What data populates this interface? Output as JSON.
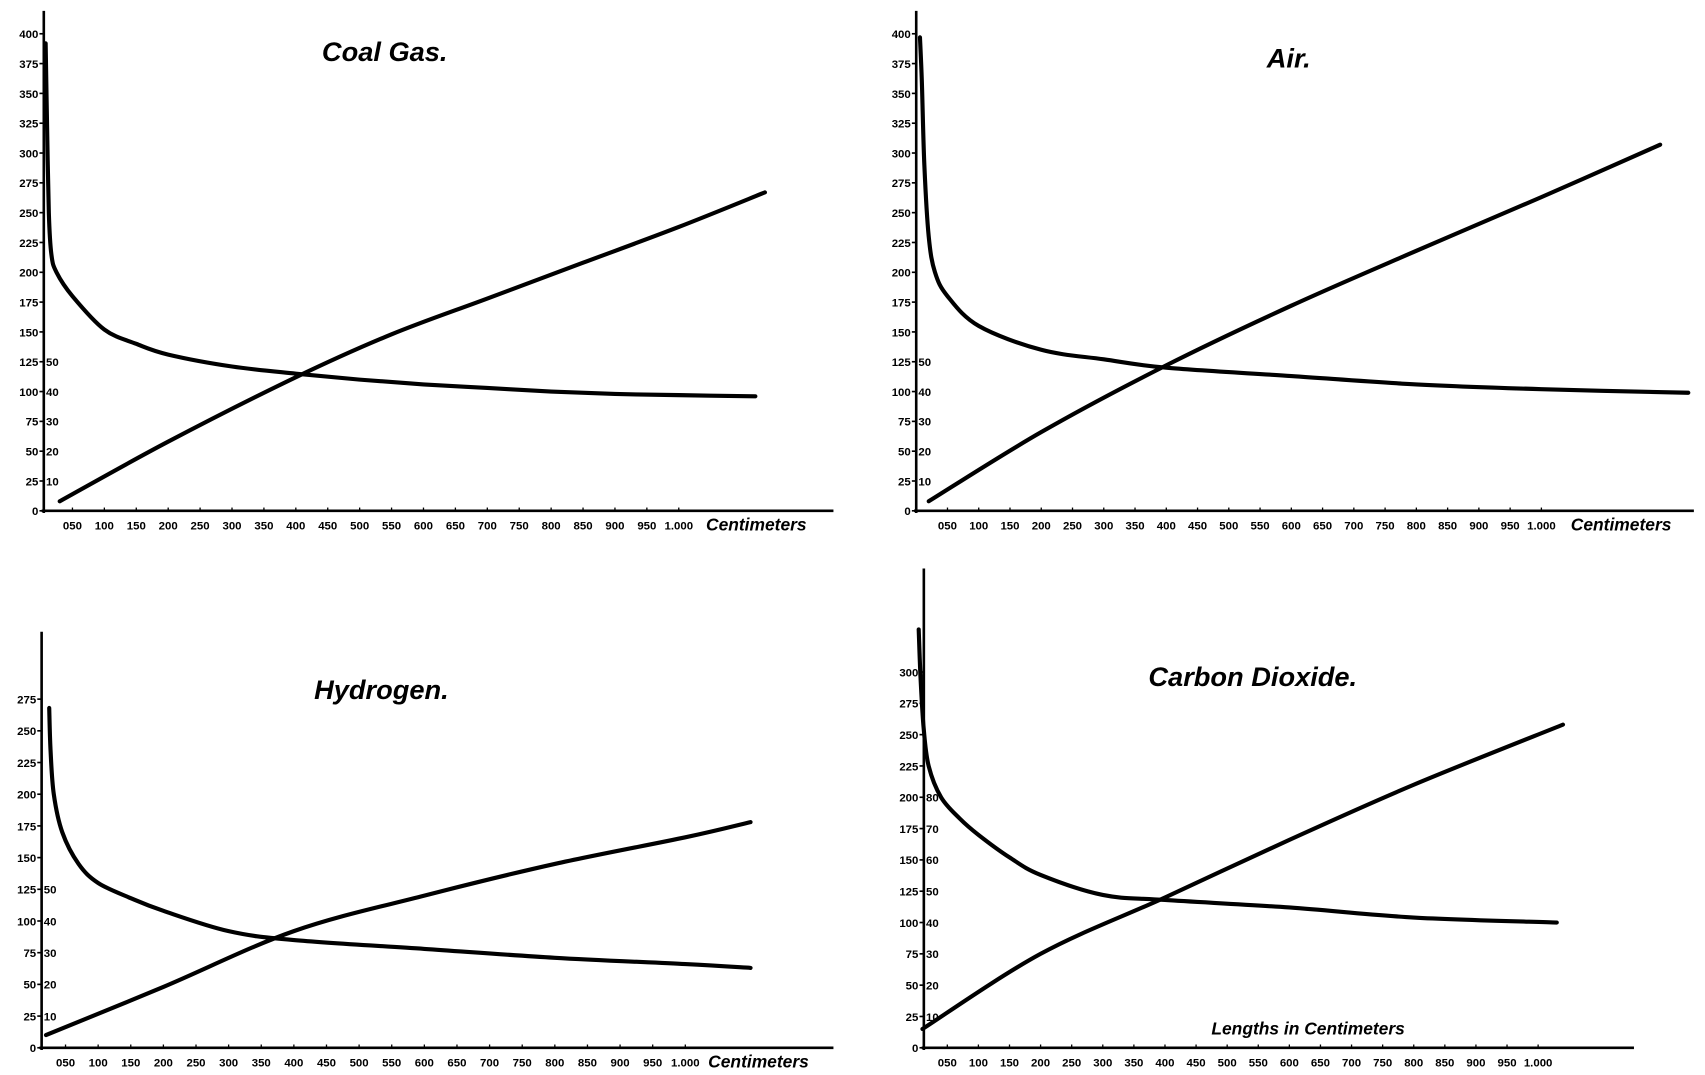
{
  "colors": {
    "ink": "#000000",
    "background": "#ffffff"
  },
  "chart_data": [
    {
      "type": "line",
      "title": "Coal Gas.",
      "xlabel": "Centimeters",
      "grid": false,
      "y_ticks": [
        "0",
        "25",
        "50",
        "75",
        "100",
        "125",
        "150",
        "175",
        "200",
        "225",
        "250",
        "275",
        "300",
        "325",
        "350",
        "375",
        "400"
      ],
      "y_tick_values": [
        0,
        25,
        50,
        75,
        100,
        125,
        150,
        175,
        200,
        225,
        250,
        275,
        300,
        325,
        350,
        375,
        400
      ],
      "y2_ticks": [
        "10",
        "20",
        "30",
        "40",
        "50"
      ],
      "x_ticks": [
        "050",
        "100",
        "150",
        "200",
        "250",
        "300",
        "350",
        "400",
        "450",
        "500",
        "550",
        "600",
        "650",
        "700",
        "750",
        "800",
        "850",
        "900",
        "950",
        "1.000"
      ],
      "x_tick_values": [
        50,
        100,
        150,
        200,
        250,
        300,
        350,
        400,
        450,
        500,
        550,
        600,
        650,
        700,
        750,
        800,
        850,
        900,
        950,
        1000
      ],
      "ylim": [
        0,
        400
      ],
      "series": [
        {
          "x": [
            8,
            10,
            13,
            17,
            25,
            50,
            100,
            150,
            200,
            300,
            400,
            500,
            600,
            700,
            800,
            900,
            1000,
            1120
          ],
          "y": [
            392,
            330,
            250,
            215,
            200,
            180,
            152,
            140,
            131,
            121,
            115,
            110,
            106,
            103,
            100,
            98,
            97,
            96
          ]
        },
        {
          "x": [
            30,
            200,
            400,
            550,
            700,
            850,
            1000,
            1135
          ],
          "y": [
            8,
            58,
            112,
            148,
            178,
            208,
            238,
            267
          ]
        }
      ]
    },
    {
      "type": "line",
      "title": "Air.",
      "xlabel": "Centimeters",
      "grid": false,
      "y_ticks": [
        "0",
        "25",
        "50",
        "75",
        "100",
        "125",
        "150",
        "175",
        "200",
        "225",
        "250",
        "275",
        "300",
        "325",
        "350",
        "375",
        "400"
      ],
      "y_tick_values": [
        0,
        25,
        50,
        75,
        100,
        125,
        150,
        175,
        200,
        225,
        250,
        275,
        300,
        325,
        350,
        375,
        400
      ],
      "y2_ticks": [
        "10",
        "20",
        "30",
        "40",
        "50"
      ],
      "x_ticks": [
        "050",
        "100",
        "150",
        "200",
        "250",
        "300",
        "350",
        "400",
        "450",
        "500",
        "550",
        "600",
        "650",
        "700",
        "750",
        "800",
        "850",
        "900",
        "950",
        "1.000"
      ],
      "x_tick_values": [
        50,
        100,
        150,
        200,
        250,
        300,
        350,
        400,
        450,
        500,
        550,
        600,
        650,
        700,
        750,
        800,
        850,
        900,
        950,
        1000
      ],
      "ylim": [
        0,
        400
      ],
      "series": [
        {
          "x": [
            6,
            9,
            13,
            20,
            30,
            50,
            100,
            200,
            300,
            400,
            600,
            800,
            1000,
            1235
          ],
          "y": [
            397,
            360,
            290,
            230,
            200,
            180,
            155,
            135,
            127,
            120,
            113,
            106,
            102,
            99
          ]
        },
        {
          "x": [
            20,
            200,
            400,
            600,
            800,
            1000,
            1190
          ],
          "y": [
            8,
            66,
            122,
            172,
            218,
            263,
            307
          ]
        }
      ]
    },
    {
      "type": "line",
      "title": "Hydrogen.",
      "xlabel": "Centimeters",
      "grid": false,
      "y_ticks": [
        "0",
        "25",
        "50",
        "75",
        "100",
        "125",
        "150",
        "175",
        "200",
        "225",
        "250",
        "275"
      ],
      "y_tick_values": [
        0,
        25,
        50,
        75,
        100,
        125,
        150,
        175,
        200,
        225,
        250,
        275
      ],
      "y2_ticks": [
        "10",
        "20",
        "30",
        "40",
        "50"
      ],
      "x_ticks": [
        "050",
        "100",
        "150",
        "200",
        "250",
        "300",
        "350",
        "400",
        "450",
        "500",
        "550",
        "600",
        "650",
        "700",
        "750",
        "800",
        "850",
        "900",
        "950",
        "1.000"
      ],
      "x_tick_values": [
        50,
        100,
        150,
        200,
        250,
        300,
        350,
        400,
        450,
        500,
        550,
        600,
        650,
        700,
        750,
        800,
        850,
        900,
        950,
        1000
      ],
      "ylim": [
        0,
        275
      ],
      "series": [
        {
          "x": [
            25,
            27,
            32,
            45,
            70,
            100,
            150,
            200,
            300,
            400,
            600,
            800,
            1000,
            1100
          ],
          "y": [
            268,
            235,
            200,
            170,
            145,
            130,
            118,
            108,
            92,
            85,
            78,
            71,
            66,
            63
          ]
        },
        {
          "x": [
            20,
            200,
            400,
            600,
            800,
            1000,
            1100
          ],
          "y": [
            10,
            48,
            92,
            120,
            145,
            166,
            178
          ]
        }
      ]
    },
    {
      "type": "line",
      "title": "Carbon Dioxide.",
      "xlabel": "Lengths in Centimeters",
      "grid": false,
      "y_ticks": [
        "0",
        "25",
        "50",
        "75",
        "100",
        "125",
        "150",
        "175",
        "200",
        "225",
        "250",
        "275",
        "300"
      ],
      "y_tick_values": [
        0,
        25,
        50,
        75,
        100,
        125,
        150,
        175,
        200,
        225,
        250,
        275,
        300
      ],
      "y2_ticks": [
        "10",
        "20",
        "30",
        "40",
        "50",
        "60",
        "70",
        "80"
      ],
      "x_ticks": [
        "050",
        "100",
        "150",
        "200",
        "250",
        "300",
        "350",
        "400",
        "450",
        "500",
        "550",
        "600",
        "650",
        "700",
        "750",
        "800",
        "850",
        "900",
        "950",
        "1.000"
      ],
      "x_tick_values": [
        50,
        100,
        150,
        200,
        250,
        300,
        350,
        400,
        450,
        500,
        550,
        600,
        650,
        700,
        750,
        800,
        850,
        900,
        950,
        1000
      ],
      "ylim": [
        0,
        300
      ],
      "series": [
        {
          "x": [
            4,
            7,
            12,
            20,
            40,
            70,
            100,
            150,
            200,
            300,
            400,
            600,
            800,
            1030
          ],
          "y": [
            334,
            295,
            255,
            225,
            200,
            183,
            170,
            152,
            138,
            122,
            118,
            112,
            104,
            100
          ]
        },
        {
          "x": [
            10,
            200,
            400,
            600,
            800,
            1040
          ],
          "y": [
            15,
            75,
            120,
            166,
            210,
            258
          ]
        }
      ]
    }
  ]
}
